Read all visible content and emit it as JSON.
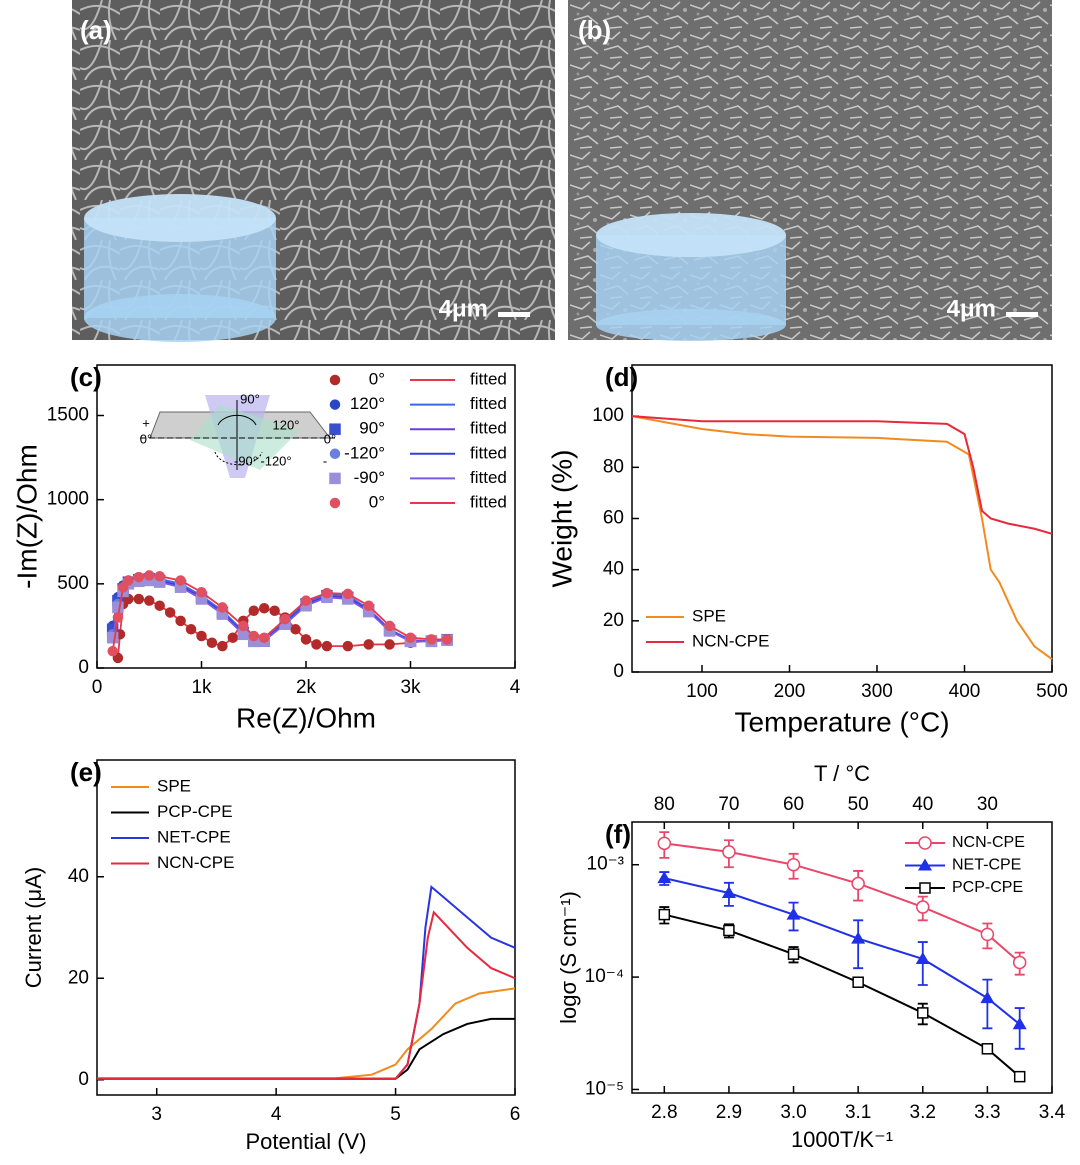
{
  "panels": [
    {
      "label": "(a)",
      "scale_bar": "4μm"
    },
    {
      "label": "(b)",
      "scale_bar": "4μm"
    }
  ],
  "chart_data": [
    {
      "type": "scatter",
      "label": "(c)",
      "xlabel": "Re(Z)/Ohm",
      "ylabel": "-Im(Z)/Ohm",
      "xlim": [
        0,
        4000
      ],
      "xticks": [
        0,
        {
          "value": 1000,
          "label": "1k"
        },
        {
          "value": 2000,
          "label": "2k"
        },
        {
          "value": 3000,
          "label": "3k"
        },
        {
          "value": 4000,
          "label": "4"
        }
      ],
      "ylim": [
        0,
        1800
      ],
      "yticks": [
        0,
        500,
        1000,
        1500
      ],
      "inset_labels": [
        "90°",
        "120°",
        "+",
        "0°",
        "0°",
        "-90°",
        "-120°",
        "-"
      ],
      "series": [
        {
          "name": "0°",
          "fit_name": "fitted",
          "color": "#b22a2a",
          "fit_color": "#e8364a",
          "marker": "circle",
          "x": [
            200,
            220,
            250,
            300,
            400,
            500,
            600,
            700,
            800,
            900,
            1000,
            1100,
            1200,
            1300,
            1400,
            1500,
            1600,
            1700,
            1800,
            1900,
            2000,
            2100,
            2200,
            2400,
            2600,
            2800,
            3000,
            3200
          ],
          "values": [
            60,
            200,
            380,
            410,
            410,
            400,
            370,
            330,
            280,
            230,
            190,
            150,
            130,
            180,
            280,
            340,
            355,
            340,
            300,
            230,
            170,
            140,
            130,
            130,
            140,
            140,
            150,
            165
          ]
        },
        {
          "name": "120°",
          "fit_name": "fitted",
          "color": "#2a46c8",
          "fit_color": "#3a6ae8",
          "marker": "circle",
          "x": [
            150,
            200,
            250,
            300,
            400,
            500,
            600,
            800,
            1000,
            1200,
            1400,
            1500,
            1600,
            1800,
            2000,
            2200,
            2400,
            2600,
            2800,
            3000,
            3200,
            3350
          ],
          "values": [
            250,
            420,
            490,
            520,
            535,
            540,
            530,
            500,
            430,
            340,
            220,
            170,
            165,
            280,
            390,
            440,
            430,
            350,
            230,
            165,
            160,
            170
          ]
        },
        {
          "name": "90°",
          "fit_name": "fitted",
          "color": "#3a4fd0",
          "fit_color": "#6a3fd8",
          "marker": "square",
          "x": [
            150,
            200,
            250,
            300,
            400,
            500,
            600,
            800,
            1000,
            1200,
            1400,
            1500,
            1600,
            1800,
            2000,
            2200,
            2400,
            2600,
            2800,
            3000,
            3200,
            3350
          ],
          "values": [
            230,
            400,
            470,
            510,
            525,
            530,
            520,
            490,
            420,
            330,
            210,
            165,
            160,
            270,
            380,
            430,
            420,
            345,
            225,
            160,
            160,
            168
          ]
        },
        {
          "name": "-120°",
          "fit_name": "fitted",
          "color": "#6a7fe0",
          "fit_color": "#3040d8",
          "marker": "circle",
          "x": [
            150,
            200,
            250,
            300,
            400,
            500,
            600,
            800,
            1000,
            1200,
            1400,
            1500,
            1600,
            1800,
            2000,
            2200,
            2400,
            2600,
            2800,
            3000,
            3200,
            3350
          ],
          "values": [
            200,
            380,
            460,
            505,
            520,
            525,
            515,
            485,
            415,
            325,
            205,
            160,
            165,
            265,
            375,
            425,
            415,
            340,
            220,
            160,
            158,
            166
          ]
        },
        {
          "name": "-90°",
          "fit_name": "fitted",
          "color": "#9a8fd8",
          "fit_color": "#7a5ae0",
          "marker": "square",
          "x": [
            150,
            200,
            250,
            300,
            400,
            500,
            600,
            800,
            1000,
            1200,
            1400,
            1500,
            1600,
            1800,
            2000,
            2200,
            2400,
            2600,
            2800,
            3000,
            3200,
            3350
          ],
          "values": [
            180,
            360,
            455,
            500,
            515,
            520,
            510,
            480,
            410,
            320,
            200,
            158,
            162,
            260,
            370,
            420,
            410,
            335,
            220,
            158,
            158,
            165
          ]
        },
        {
          "name": "0°",
          "fit_name": "fitted",
          "color": "#e05060",
          "fit_color": "#e8364a",
          "marker": "circle",
          "x": [
            150,
            200,
            250,
            300,
            400,
            500,
            600,
            800,
            1000,
            1200,
            1400,
            1500,
            1600,
            1800,
            2000,
            2200,
            2400,
            2600,
            2800,
            3000,
            3200,
            3350
          ],
          "values": [
            100,
            300,
            480,
            520,
            540,
            550,
            545,
            520,
            450,
            360,
            250,
            190,
            180,
            290,
            400,
            445,
            440,
            370,
            250,
            180,
            170,
            170
          ]
        }
      ]
    },
    {
      "type": "line",
      "label": "(d)",
      "xlabel": "Temperature (°C)",
      "ylabel": "Weight (%)",
      "xlim": [
        20,
        500
      ],
      "xticks": [
        100,
        200,
        300,
        400,
        500
      ],
      "ylim": [
        0,
        120
      ],
      "yticks": [
        0,
        20,
        40,
        60,
        80,
        100
      ],
      "legend": "lower left",
      "series": [
        {
          "name": "SPE",
          "color": "#f28a1e",
          "x": [
            20,
            100,
            150,
            200,
            300,
            380,
            405,
            420,
            430,
            440,
            460,
            480,
            500
          ],
          "values": [
            100,
            95,
            93,
            92,
            91.5,
            90,
            85,
            60,
            40,
            35,
            20,
            10,
            5
          ]
        },
        {
          "name": "NCN-CPE",
          "color": "#e8283c",
          "x": [
            20,
            100,
            200,
            300,
            380,
            400,
            410,
            420,
            430,
            450,
            480,
            500
          ],
          "values": [
            100,
            98,
            98,
            98,
            97,
            93,
            80,
            63,
            60,
            58,
            56,
            54
          ]
        }
      ]
    },
    {
      "type": "line",
      "label": "(e)",
      "xlabel": "Potential (V)",
      "ylabel": "Current (μA)",
      "xlim": [
        2.5,
        6
      ],
      "xticks": [
        3,
        4,
        5,
        6
      ],
      "ylim": [
        -3,
        63
      ],
      "yticks": [
        0,
        20,
        40
      ],
      "legend": "upper left",
      "series": [
        {
          "name": "SPE",
          "color": "#f28a1e",
          "x": [
            2.5,
            4.5,
            4.8,
            5.0,
            5.1,
            5.3,
            5.5,
            5.7,
            6.0
          ],
          "values": [
            0.3,
            0.3,
            1,
            3,
            6,
            10,
            15,
            17,
            18
          ]
        },
        {
          "name": "PCP-CPE",
          "color": "#000000",
          "x": [
            2.5,
            5.0,
            5.1,
            5.2,
            5.4,
            5.6,
            5.8,
            6.0
          ],
          "values": [
            0.2,
            0.2,
            2,
            6,
            9,
            11,
            12,
            12
          ]
        },
        {
          "name": "NET-CPE",
          "color": "#2a35e0",
          "x": [
            2.5,
            5.0,
            5.1,
            5.2,
            5.25,
            5.3,
            5.4,
            5.6,
            5.8,
            6.0
          ],
          "values": [
            0.2,
            0.2,
            3,
            15,
            30,
            38,
            36,
            32,
            28,
            26
          ]
        },
        {
          "name": "NCN-CPE",
          "color": "#e8283c",
          "x": [
            2.5,
            5.0,
            5.1,
            5.2,
            5.27,
            5.32,
            5.4,
            5.6,
            5.8,
            6.0
          ],
          "values": [
            0.2,
            0.2,
            3,
            15,
            28,
            33,
            31,
            26,
            22,
            20
          ]
        }
      ]
    },
    {
      "type": "errorline",
      "label": "(f)",
      "xlabel": "1000T/K⁻¹",
      "ylabel": "logσ (S cm⁻¹)",
      "x2label": "T / °C",
      "xlim": [
        2.75,
        3.4
      ],
      "xticks": [
        2.8,
        2.9,
        {
          "value": 3.0,
          "label": "3.0"
        },
        3.1,
        3.2,
        3.3,
        3.4
      ],
      "x2ticks": [
        {
          "value": 2.8,
          "label": "80"
        },
        {
          "value": 2.9,
          "label": "70"
        },
        {
          "value": 3.0,
          "label": "60"
        },
        {
          "value": 3.1,
          "label": "50"
        },
        {
          "value": 3.2,
          "label": "40"
        },
        {
          "value": 3.3,
          "label": "30"
        }
      ],
      "yscale": "log",
      "ylim": [
        9.3e-06,
        0.0024
      ],
      "yticks": [
        {
          "value": 0.001,
          "label": "10⁻³"
        },
        {
          "value": 0.0001,
          "label": "10⁻⁴"
        },
        {
          "value": 1e-05,
          "label": "10⁻⁵"
        }
      ],
      "legend": "upper right",
      "x": [
        2.8,
        2.9,
        3.0,
        3.1,
        3.2,
        3.3,
        3.35
      ],
      "series": [
        {
          "name": "NCN-CPE",
          "color": "#e8476a",
          "marker": "open-circle",
          "values": [
            0.00155,
            0.0013,
            0.001,
            0.00068,
            0.00042,
            0.00024,
            0.000135
          ],
          "errors": [
            0.0004,
            0.00035,
            0.00025,
            0.0002,
            0.0001,
            6e-05,
            3e-05
          ]
        },
        {
          "name": "NET-CPE",
          "color": "#2030e8",
          "marker": "triangle",
          "values": [
            0.00076,
            0.00056,
            0.00036,
            0.00022,
            0.000145,
            6.5e-05,
            3.8e-05
          ],
          "errors": [
            0.0001,
            0.00013,
            0.0001,
            0.0001,
            6e-05,
            3e-05,
            1.5e-05
          ]
        },
        {
          "name": "PCP-CPE",
          "color": "#000000",
          "marker": "open-square",
          "values": [
            0.00036,
            0.00026,
            0.00016,
            9e-05,
            4.8e-05,
            2.3e-05,
            1.3e-05
          ],
          "errors": [
            6e-05,
            3.5e-05,
            2.5e-05,
            8e-06,
            1e-05,
            1e-06,
            1e-06
          ]
        }
      ]
    }
  ]
}
